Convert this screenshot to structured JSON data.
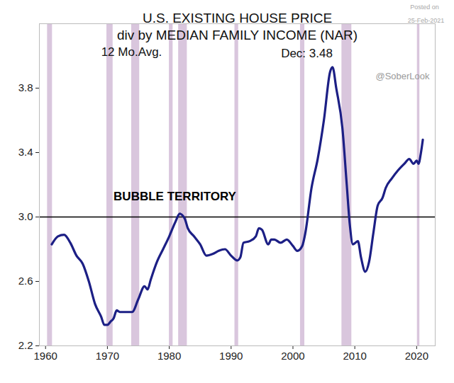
{
  "chart_data": {
    "type": "line",
    "title": "U.S. EXISTING HOUSE PRICE",
    "subtitle": "div by MEDIAN FAMILY INCOME (NAR)",
    "annotations": [
      "12 Mo.Avg.",
      "Dec: 3.48",
      "BUBBLE TERRITORY",
      "@SoberLook",
      "Posted on",
      "25-Feb-2021"
    ],
    "x": [
      1961,
      1962,
      1963,
      1964,
      1965,
      1966,
      1967,
      1968,
      1969,
      1969.5,
      1970,
      1970.5,
      1971,
      1971.5,
      1972,
      1973,
      1974,
      1975,
      1976,
      1976.5,
      1977,
      1978,
      1979,
      1980,
      1981,
      1981.7,
      1982.5,
      1983,
      1984,
      1985,
      1986,
      1987,
      1988,
      1989,
      1990,
      1991,
      1991.5,
      1992,
      1993,
      1994,
      1994.5,
      1995,
      1996,
      1996.5,
      1997,
      1998,
      1999,
      2000,
      2000.7,
      2001.5,
      2002,
      2003,
      2004,
      2005,
      2006,
      2006.4,
      2007,
      2008,
      2008.7,
      2009.2,
      2009.7,
      2010.5,
      2011,
      2011.7,
      2012.3,
      2013,
      2013.7,
      2014.5,
      2015,
      2016,
      2017,
      2018,
      2018.8,
      2019.5,
      2020,
      2020.3,
      2020.7,
      2021
    ],
    "values": [
      2.83,
      2.88,
      2.89,
      2.84,
      2.76,
      2.71,
      2.6,
      2.46,
      2.38,
      2.33,
      2.33,
      2.35,
      2.37,
      2.42,
      2.41,
      2.41,
      2.41,
      2.49,
      2.57,
      2.55,
      2.61,
      2.72,
      2.8,
      2.88,
      2.97,
      3.02,
      2.99,
      2.93,
      2.88,
      2.83,
      2.76,
      2.77,
      2.79,
      2.8,
      2.76,
      2.73,
      2.75,
      2.84,
      2.85,
      2.88,
      2.93,
      2.92,
      2.83,
      2.86,
      2.86,
      2.84,
      2.86,
      2.82,
      2.79,
      2.82,
      2.9,
      3.18,
      3.36,
      3.6,
      3.9,
      3.93,
      3.8,
      3.55,
      3.2,
      2.95,
      2.83,
      2.85,
      2.75,
      2.66,
      2.72,
      2.9,
      3.07,
      3.12,
      3.18,
      3.24,
      3.29,
      3.33,
      3.36,
      3.33,
      3.35,
      3.33,
      3.4,
      3.48
    ],
    "color": "#1c1f85",
    "recessions": [
      [
        1960.3,
        1961.1
      ],
      [
        1969.9,
        1970.9
      ],
      [
        1973.9,
        1975.2
      ],
      [
        1980.0,
        1980.6
      ],
      [
        1981.5,
        1982.9
      ],
      [
        1990.6,
        1991.2
      ],
      [
        2001.2,
        2001.9
      ],
      [
        2007.9,
        2009.5
      ],
      [
        2020.1,
        2020.5
      ]
    ],
    "recession_color": "#d9c6dd",
    "bubble_line": 3.0,
    "xlim": [
      1959,
      2023
    ],
    "xticks": [
      1960,
      1970,
      1980,
      1990,
      2000,
      2010,
      2020
    ],
    "ylim": [
      2.2,
      4.2
    ],
    "yticks": [
      2.2,
      2.6,
      {
        "value": 3.0,
        "label": "3.0"
      },
      3.4,
      3.8
    ],
    "grid": false
  }
}
